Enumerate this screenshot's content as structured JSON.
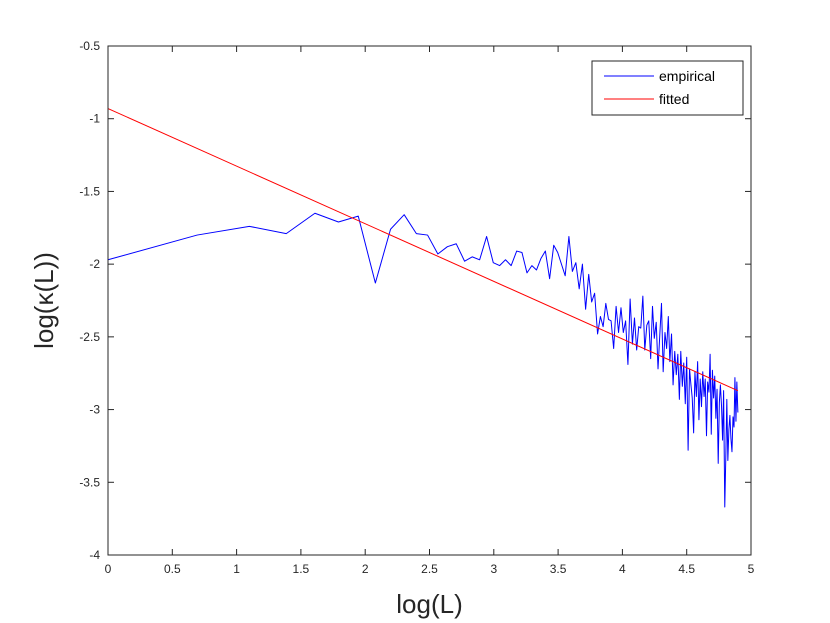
{
  "chart_data": {
    "type": "line",
    "xlabel": "log(L)",
    "ylabel": "log(κ(L))",
    "xlim": [
      0,
      5
    ],
    "ylim": [
      -4,
      -0.5
    ],
    "x_ticks": [
      0,
      0.5,
      1,
      1.5,
      2,
      2.5,
      3,
      3.5,
      4,
      4.5,
      5
    ],
    "y_ticks": [
      -4,
      -3.5,
      -3,
      -2.5,
      -2,
      -1.5,
      -1,
      -0.5
    ],
    "x_tick_labels": [
      "0",
      "0.5",
      "1",
      "1.5",
      "2",
      "2.5",
      "3",
      "3.5",
      "4",
      "4.5",
      "5"
    ],
    "y_tick_labels": [
      "-4",
      "-3.5",
      "-3",
      "-2.5",
      "-2",
      "-1.5",
      "-1",
      "-0.5"
    ],
    "grid": false,
    "legend_position": "top-right",
    "series": [
      {
        "name": "empirical",
        "color": "#0000ff",
        "x": [
          0,
          0.693,
          1.099,
          1.386,
          1.609,
          1.792,
          1.946,
          2.079,
          2.197,
          2.303,
          2.398,
          2.485,
          2.565,
          2.639,
          2.708,
          2.773,
          2.833,
          2.89,
          2.944,
          2.996,
          3.045,
          3.091,
          3.135,
          3.178,
          3.219,
          3.258,
          3.296,
          3.332,
          3.367,
          3.401,
          3.434,
          3.466,
          3.497,
          3.526,
          3.555,
          3.584,
          3.611,
          3.638,
          3.664,
          3.689,
          3.714,
          3.738,
          3.761,
          3.784,
          3.807,
          3.829,
          3.85,
          3.871,
          3.892,
          3.912,
          3.932,
          3.951,
          3.97,
          3.989,
          4.007,
          4.025,
          4.043,
          4.06,
          4.078,
          4.094,
          4.111,
          4.127,
          4.143,
          4.159,
          4.174,
          4.19,
          4.205,
          4.22,
          4.234,
          4.248,
          4.263,
          4.277,
          4.29,
          4.304,
          4.317,
          4.331,
          4.344,
          4.357,
          4.369,
          4.382,
          4.394,
          4.407,
          4.419,
          4.431,
          4.443,
          4.454,
          4.466,
          4.477,
          4.489,
          4.5,
          4.511,
          4.522,
          4.533,
          4.543,
          4.554,
          4.564,
          4.575,
          4.585,
          4.595,
          4.605,
          4.615,
          4.625,
          4.635,
          4.644,
          4.654,
          4.663,
          4.673,
          4.682,
          4.691,
          4.7,
          4.709,
          4.718,
          4.727,
          4.736,
          4.745,
          4.754,
          4.762,
          4.771,
          4.779,
          4.787,
          4.796,
          4.804,
          4.812,
          4.82,
          4.828,
          4.836,
          4.844,
          4.852,
          4.86,
          4.868,
          4.875,
          4.883,
          4.89,
          4.898
        ],
        "y": [
          -1.97,
          -1.8,
          -1.74,
          -1.79,
          -1.65,
          -1.71,
          -1.67,
          -2.13,
          -1.76,
          -1.66,
          -1.79,
          -1.8,
          -1.93,
          -1.88,
          -1.86,
          -1.98,
          -1.95,
          -1.97,
          -1.81,
          -1.99,
          -2.01,
          -1.97,
          -2.01,
          -1.91,
          -1.92,
          -2.06,
          -2.01,
          -2.04,
          -1.96,
          -1.91,
          -2.1,
          -1.87,
          -1.92,
          -2.0,
          -2.08,
          -1.81,
          -2.05,
          -1.99,
          -2.17,
          -2.0,
          -2.31,
          -2.07,
          -2.26,
          -2.2,
          -2.48,
          -2.36,
          -2.43,
          -2.27,
          -2.38,
          -2.39,
          -2.58,
          -2.29,
          -2.47,
          -2.3,
          -2.47,
          -2.39,
          -2.69,
          -2.24,
          -2.55,
          -2.37,
          -2.59,
          -2.43,
          -2.44,
          -2.22,
          -2.59,
          -2.42,
          -2.39,
          -2.65,
          -2.29,
          -2.51,
          -2.4,
          -2.72,
          -2.5,
          -2.27,
          -2.74,
          -2.47,
          -2.58,
          -2.36,
          -2.67,
          -2.48,
          -2.83,
          -2.6,
          -2.76,
          -2.62,
          -2.93,
          -2.6,
          -2.84,
          -2.68,
          -2.96,
          -2.64,
          -3.28,
          -2.72,
          -2.83,
          -2.92,
          -3.16,
          -2.74,
          -2.91,
          -2.67,
          -3.07,
          -2.79,
          -2.98,
          -2.74,
          -2.91,
          -2.79,
          -3.18,
          -2.81,
          -2.88,
          -2.62,
          -3.17,
          -2.73,
          -2.92,
          -2.77,
          -3.06,
          -2.86,
          -3.37,
          -2.95,
          -2.83,
          -2.98,
          -3.21,
          -2.87,
          -3.67,
          -3.33,
          -2.93,
          -3.35,
          -3.14,
          -3.04,
          -3.2,
          -3.29,
          -3.05,
          -3.12,
          -2.78,
          -3.08,
          -2.81,
          -3.02
        ]
      },
      {
        "name": "fitted",
        "color": "#ff0000",
        "x": [
          0,
          4.898
        ],
        "y": [
          -0.93,
          -2.87
        ]
      }
    ]
  }
}
